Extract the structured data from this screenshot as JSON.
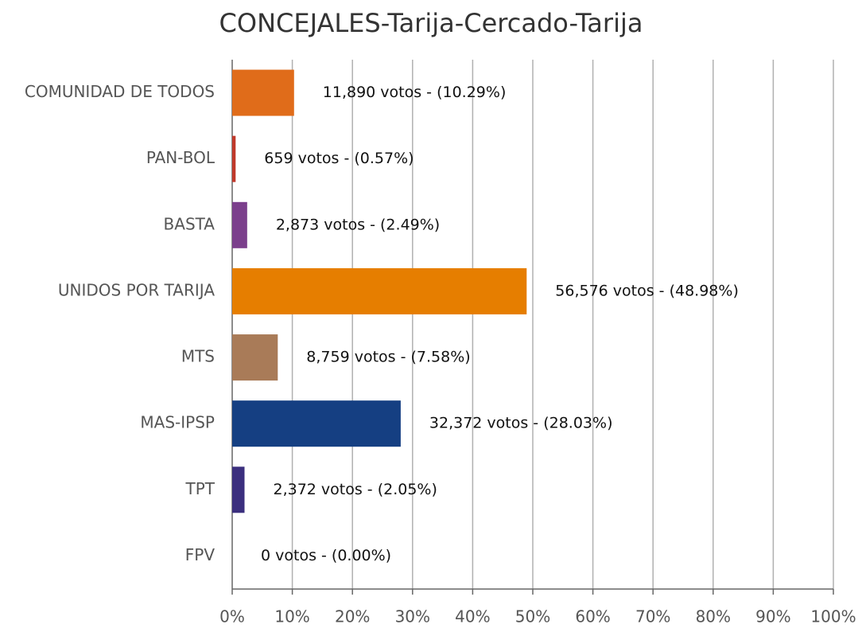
{
  "chart_data": {
    "type": "hbar",
    "title": "CONCEJALES-Tarija-Cercado-Tarija",
    "categories": [
      "COMUNIDAD DE TODOS",
      "PAN-BOL",
      "BASTA",
      "UNIDOS POR TARIJA",
      "MTS",
      "MAS-IPSP",
      "TPT",
      "FPV"
    ],
    "values": [
      10.29,
      0.57,
      2.49,
      48.98,
      7.58,
      28.03,
      2.05,
      0.0
    ],
    "value_labels": [
      "11,890 votos - (10.29%)",
      "659 votos - (0.57%)",
      "2,873 votos - (2.49%)",
      "56,576 votos - (48.98%)",
      "8,759 votos - (7.58%)",
      "32,372 votos - (28.03%)",
      "2,372 votos - (2.05%)",
      "0 votos - (0.00%)"
    ],
    "colors": [
      "#e06c1a",
      "#c0392b",
      "#7b3f8c",
      "#e67e00",
      "#a97b58",
      "#153f82",
      "#3b2f7e",
      "#888888"
    ],
    "xlim": [
      0,
      100
    ],
    "xticks": [
      {
        "value": 0,
        "label": "0%"
      },
      {
        "value": 10,
        "label": "10%"
      },
      {
        "value": 20,
        "label": "20%"
      },
      {
        "value": 30,
        "label": "30%"
      },
      {
        "value": 40,
        "label": "40%"
      },
      {
        "value": 50,
        "label": "50%"
      },
      {
        "value": 60,
        "label": "60%"
      },
      {
        "value": 70,
        "label": "70%"
      },
      {
        "value": 80,
        "label": "80%"
      },
      {
        "value": 90,
        "label": "90%"
      },
      {
        "value": 100,
        "label": "100%"
      }
    ],
    "grid": true
  }
}
